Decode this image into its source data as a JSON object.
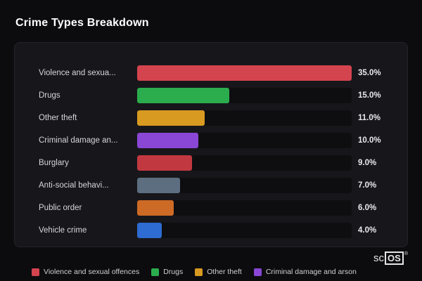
{
  "title": "Crime Types Breakdown",
  "chart_data": {
    "type": "bar",
    "orientation": "horizontal",
    "title": "Crime Types Breakdown",
    "categories": [
      "Violence and sexua...",
      "Drugs",
      "Other theft",
      "Criminal damage an...",
      "Burglary",
      "Anti-social behavi...",
      "Public order",
      "Vehicle crime"
    ],
    "values": [
      35.0,
      15.0,
      11.0,
      10.0,
      9.0,
      7.0,
      6.0,
      4.0
    ],
    "value_labels": [
      "35.0%",
      "15.0%",
      "11.0%",
      "10.0%",
      "9.0%",
      "7.0%",
      "6.0%",
      "4.0%"
    ],
    "colors": [
      "#d4444e",
      "#2bad4e",
      "#d89a20",
      "#8a46d4",
      "#c23840",
      "#5c6e80",
      "#cd6a25",
      "#2e6bd2"
    ],
    "xlim": [
      0,
      35
    ],
    "max": 35,
    "grid": false,
    "legend_position": "bottom",
    "legend": [
      {
        "label": "Violence and sexual offences",
        "color": "#d4444e"
      },
      {
        "label": "Drugs",
        "color": "#2bad4e"
      },
      {
        "label": "Other theft",
        "color": "#d89a20"
      },
      {
        "label": "Criminal damage and arson",
        "color": "#8a46d4"
      }
    ]
  },
  "branding": {
    "prefix": "sc",
    "suffix": "OS",
    "registered": "®"
  }
}
